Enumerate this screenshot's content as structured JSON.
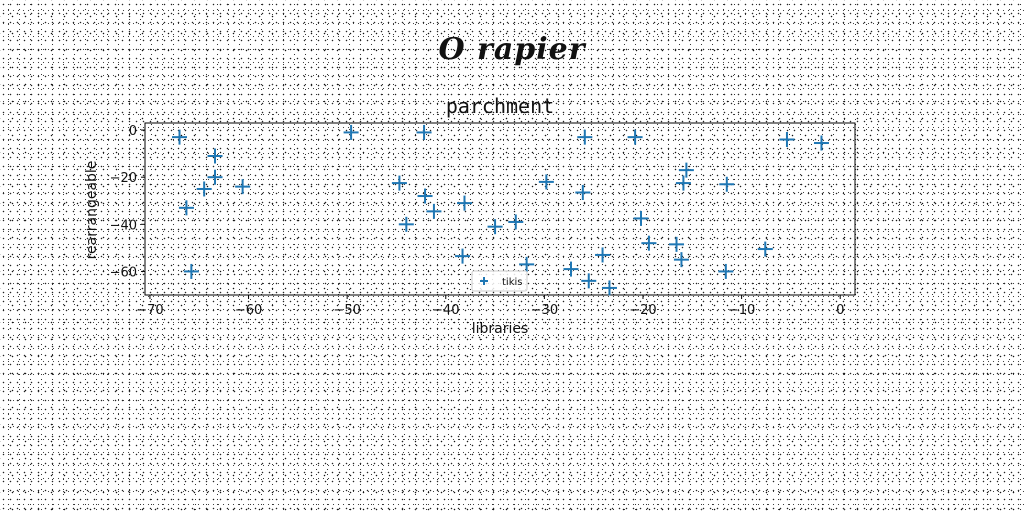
{
  "suptitle": "O rapier",
  "chart_data": {
    "type": "scatter",
    "title": "parchment",
    "xlabel": "libraries",
    "ylabel": "rearrangeable",
    "xlim": [
      -70.5,
      1.5
    ],
    "ylim": [
      -70,
      3
    ],
    "xticks": [
      -70,
      -60,
      -50,
      -40,
      -30,
      -20,
      -10,
      0
    ],
    "yticks": [
      0,
      -20,
      -40,
      -60
    ],
    "marker": "+",
    "color": "#1f77b4",
    "legend": "bottom-center",
    "series": [
      {
        "name": "tikis",
        "points": [
          [
            -67.0,
            -3
          ],
          [
            -63.4,
            -11
          ],
          [
            -63.4,
            -20
          ],
          [
            -64.5,
            -25
          ],
          [
            -60.6,
            -24
          ],
          [
            -66.3,
            -33
          ],
          [
            -65.8,
            -60
          ],
          [
            -49.6,
            -1
          ],
          [
            -42.2,
            -1
          ],
          [
            -44.7,
            -22.5
          ],
          [
            -42.1,
            -28
          ],
          [
            -44.0,
            -40
          ],
          [
            -41.2,
            -34.5
          ],
          [
            -38.1,
            -31
          ],
          [
            -38.3,
            -53.5
          ],
          [
            -35.0,
            -41
          ],
          [
            -32.9,
            -39
          ],
          [
            -31.8,
            -57
          ],
          [
            -29.8,
            -22
          ],
          [
            -25.9,
            -3
          ],
          [
            -26.1,
            -26.5
          ],
          [
            -27.3,
            -59
          ],
          [
            -25.5,
            -64
          ],
          [
            -24.1,
            -53
          ],
          [
            -23.4,
            -67
          ],
          [
            -20.8,
            -3
          ],
          [
            -20.2,
            -37.5
          ],
          [
            -19.4,
            -48
          ],
          [
            -16.6,
            -48.5
          ],
          [
            -16.1,
            -55
          ],
          [
            -15.9,
            -22.5
          ],
          [
            -15.6,
            -17
          ],
          [
            -11.5,
            -23
          ],
          [
            -11.6,
            -60
          ],
          [
            -7.6,
            -50.5
          ],
          [
            -5.4,
            -4
          ],
          [
            -1.9,
            -5.5
          ]
        ]
      }
    ]
  }
}
